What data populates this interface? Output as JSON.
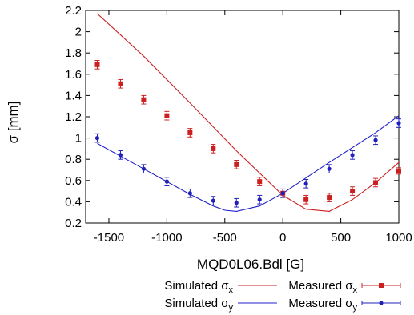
{
  "chart_data": {
    "type": "line",
    "xlabel": "MQD0L06.Bdl [G]",
    "ylabel": "σ [mm]",
    "xlim": [
      -1700,
      1000
    ],
    "ylim": [
      0.2,
      2.2
    ],
    "x_ticks": [
      -1500,
      -1000,
      -500,
      0,
      500,
      1000
    ],
    "x_tick_labels": [
      "-1500",
      "-1000",
      "-500",
      "0",
      "500",
      "1000"
    ],
    "y_ticks": [
      0.2,
      0.4,
      0.6,
      0.8,
      1.0,
      1.2,
      1.4,
      1.6,
      1.8,
      2.0,
      2.2
    ],
    "y_tick_labels": [
      "0.2",
      "0.4",
      "0.6",
      "0.8",
      "1",
      "1.2",
      "1.4",
      "1.6",
      "1.8",
      "2",
      "2.2"
    ],
    "grid": false,
    "legend_position": "below",
    "series": [
      {
        "name": "Simulated σx",
        "kind": "line",
        "color": "#cc2020",
        "x": [
          -1600,
          -1200,
          -800,
          -400,
          0,
          200,
          400,
          600,
          800,
          1000
        ],
        "y": [
          2.17,
          1.77,
          1.33,
          0.88,
          0.46,
          0.33,
          0.31,
          0.42,
          0.58,
          0.77
        ]
      },
      {
        "name": "Simulated σy",
        "kind": "line",
        "color": "#2020cc",
        "x": [
          -1600,
          -1200,
          -800,
          -600,
          -500,
          -400,
          -200,
          0,
          400,
          800,
          1000
        ],
        "y": [
          0.95,
          0.71,
          0.47,
          0.36,
          0.32,
          0.31,
          0.36,
          0.48,
          0.77,
          1.05,
          1.21
        ]
      },
      {
        "name": "Measured σx",
        "kind": "points",
        "marker": "square",
        "color": "#cc2020",
        "x": [
          -1600,
          -1400,
          -1200,
          -1000,
          -800,
          -600,
          -400,
          -200,
          0,
          200,
          400,
          600,
          800,
          1000
        ],
        "y": [
          1.69,
          1.51,
          1.36,
          1.21,
          1.05,
          0.9,
          0.75,
          0.59,
          0.48,
          0.42,
          0.44,
          0.5,
          0.58,
          0.69
        ],
        "err": [
          0.04,
          0.04,
          0.04,
          0.04,
          0.04,
          0.04,
          0.04,
          0.04,
          0.04,
          0.04,
          0.04,
          0.04,
          0.04,
          0.03
        ]
      },
      {
        "name": "Measured σy",
        "kind": "points",
        "marker": "circle",
        "color": "#2020bb",
        "x": [
          -1600,
          -1400,
          -1200,
          -1000,
          -800,
          -600,
          -400,
          -200,
          0,
          200,
          400,
          600,
          800,
          1000
        ],
        "y": [
          1.0,
          0.84,
          0.71,
          0.59,
          0.48,
          0.41,
          0.39,
          0.42,
          0.48,
          0.57,
          0.71,
          0.84,
          0.98,
          1.14
        ],
        "err": [
          0.04,
          0.04,
          0.04,
          0.04,
          0.04,
          0.04,
          0.04,
          0.04,
          0.04,
          0.04,
          0.04,
          0.04,
          0.04,
          0.04
        ]
      }
    ],
    "legend": [
      {
        "label": "Simulated σ",
        "sub": "x",
        "series": 0
      },
      {
        "label": "Measured σ",
        "sub": "x",
        "series": 2
      },
      {
        "label": "Simulated σ",
        "sub": "y",
        "series": 1
      },
      {
        "label": "Measured σ",
        "sub": "y",
        "series": 3
      }
    ]
  }
}
